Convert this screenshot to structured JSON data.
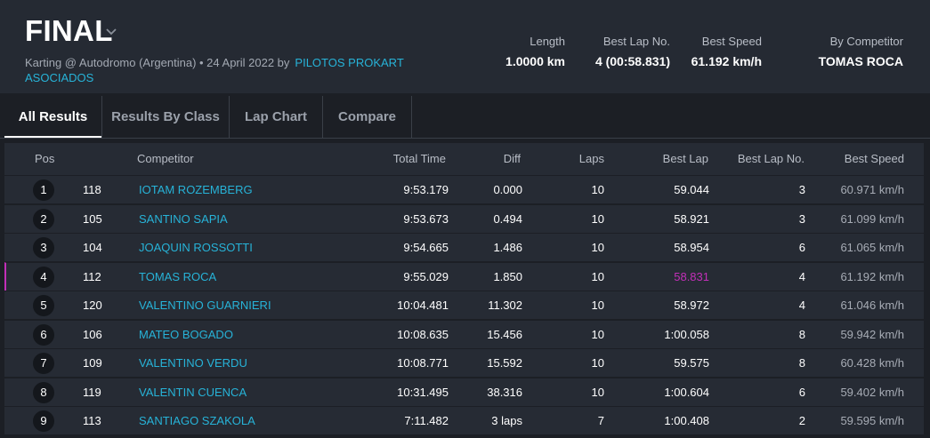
{
  "header": {
    "title": "FINAL",
    "subtitle_text": "Karting @ Autodromo (Argentina) • 24 April 2022 by",
    "organizer_link": "PILOTOS PROKART ASOCIADOS",
    "stats": {
      "length_label": "Length",
      "length_value": "1.0000 km",
      "best_lap_no_label": "Best Lap No.",
      "best_lap_no_value": "4 (00:58.831)",
      "best_speed_label": "Best Speed",
      "best_speed_value": "61.192 km/h",
      "by_competitor_label": "By Competitor",
      "by_competitor_value": "TOMAS ROCA"
    }
  },
  "tabs": [
    {
      "label": "All Results",
      "active": true
    },
    {
      "label": "Results By Class",
      "active": false
    },
    {
      "label": "Lap Chart",
      "active": false
    },
    {
      "label": "Compare",
      "active": false
    }
  ],
  "table": {
    "columns": {
      "pos": "Pos",
      "competitor": "Competitor",
      "total_time": "Total Time",
      "diff": "Diff",
      "laps": "Laps",
      "best_lap": "Best Lap",
      "best_lap_no": "Best Lap No.",
      "best_speed": "Best Speed"
    },
    "rows": [
      {
        "pos": "1",
        "no": "118",
        "name": "IOTAM ROZEMBERG",
        "total": "9:53.179",
        "diff": "0.000",
        "laps": "10",
        "best_lap": "59.044",
        "best_lap_no": "3",
        "speed": "60.971 km/h"
      },
      {
        "pos": "2",
        "no": "105",
        "name": "SANTINO SAPIA",
        "total": "9:53.673",
        "diff": "0.494",
        "laps": "10",
        "best_lap": "58.921",
        "best_lap_no": "3",
        "speed": "61.099 km/h"
      },
      {
        "pos": "3",
        "no": "104",
        "name": "JOAQUIN ROSSOTTI",
        "total": "9:54.665",
        "diff": "1.486",
        "laps": "10",
        "best_lap": "58.954",
        "best_lap_no": "6",
        "speed": "61.065 km/h"
      },
      {
        "pos": "4",
        "no": "112",
        "name": "TOMAS ROCA",
        "total": "9:55.029",
        "diff": "1.850",
        "laps": "10",
        "best_lap": "58.831",
        "best_lap_no": "4",
        "speed": "61.192 km/h"
      },
      {
        "pos": "5",
        "no": "120",
        "name": "VALENTINO GUARNIERI",
        "total": "10:04.481",
        "diff": "11.302",
        "laps": "10",
        "best_lap": "58.972",
        "best_lap_no": "4",
        "speed": "61.046 km/h"
      },
      {
        "pos": "6",
        "no": "106",
        "name": "MATEO BOGADO",
        "total": "10:08.635",
        "diff": "15.456",
        "laps": "10",
        "best_lap": "1:00.058",
        "best_lap_no": "8",
        "speed": "59.942 km/h"
      },
      {
        "pos": "7",
        "no": "109",
        "name": "VALENTINO VERDU",
        "total": "10:08.771",
        "diff": "15.592",
        "laps": "10",
        "best_lap": "59.575",
        "best_lap_no": "8",
        "speed": "60.428 km/h"
      },
      {
        "pos": "8",
        "no": "119",
        "name": "VALENTIN CUENCA",
        "total": "10:31.495",
        "diff": "38.316",
        "laps": "10",
        "best_lap": "1:00.604",
        "best_lap_no": "6",
        "speed": "59.402 km/h"
      },
      {
        "pos": "9",
        "no": "113",
        "name": "SANTIAGO SZAKOLA",
        "total": "7:11.482",
        "diff": "3 laps",
        "laps": "7",
        "best_lap": "1:00.408",
        "best_lap_no": "2",
        "speed": "59.595 km/h"
      }
    ]
  },
  "colors": {
    "accent": "#27b3d8",
    "best_lap_highlight": "#c22fb8"
  },
  "icons": {
    "title_dropdown": "chevron-down-icon"
  }
}
